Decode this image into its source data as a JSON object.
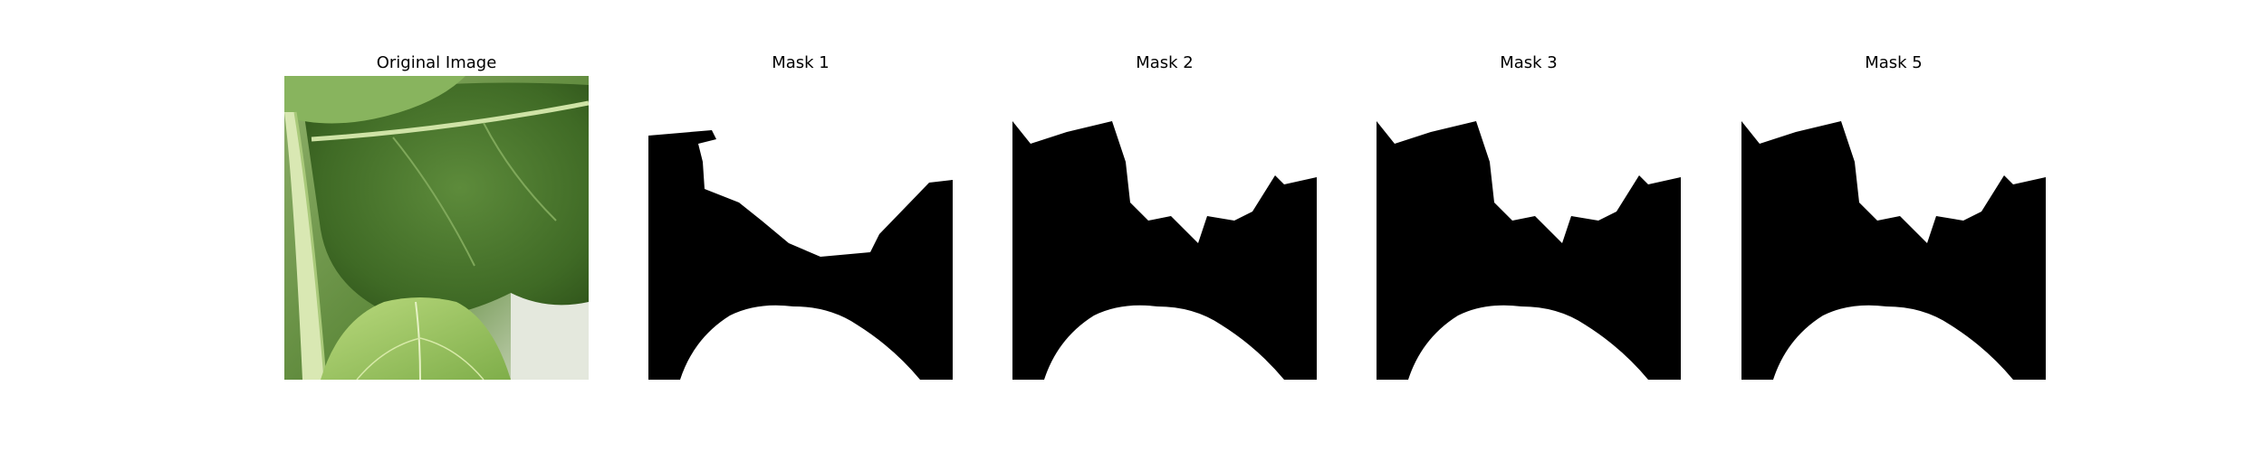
{
  "figure": {
    "panels": [
      {
        "title": "Original Image",
        "kind": "photo"
      },
      {
        "title": "Mask 1",
        "kind": "mask"
      },
      {
        "title": "Mask 2",
        "kind": "mask"
      },
      {
        "title": "Mask 3",
        "kind": "mask"
      },
      {
        "title": "Mask 5",
        "kind": "mask"
      }
    ]
  },
  "colors": {
    "mask_foreground": "#ffffff",
    "mask_background": "#000000",
    "leaf_dark": "#4f7a34",
    "leaf_light": "#a9cf6c",
    "backdrop": "#e6e9dc"
  }
}
